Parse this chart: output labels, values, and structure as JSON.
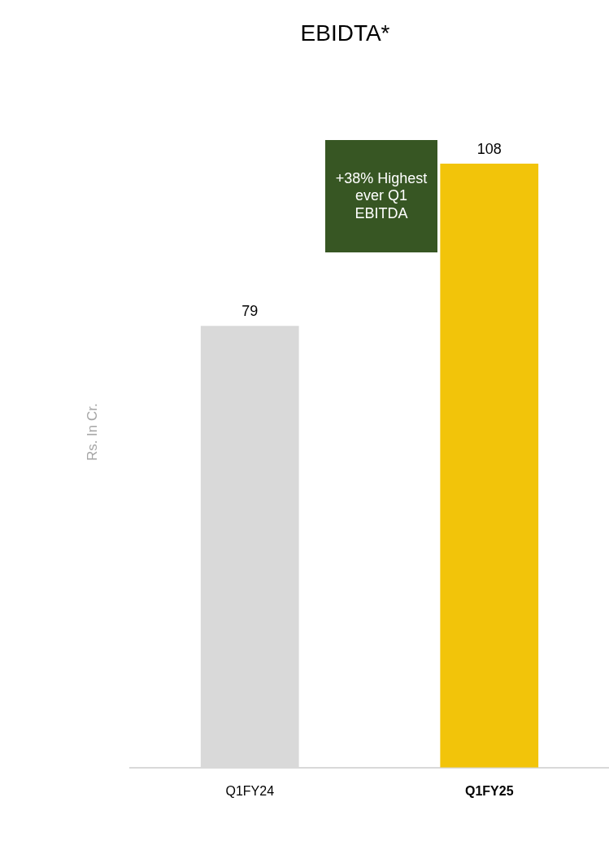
{
  "chart_data": {
    "type": "bar",
    "title": "EBIDTA*",
    "ylabel": "Rs. In Cr.",
    "categories": [
      "Q1FY24",
      "Q1FY25"
    ],
    "values": [
      79,
      108
    ],
    "colors": [
      "#d9d9d9",
      "#f2c40a"
    ],
    "data_labels": true,
    "grid": false,
    "legend": false,
    "tick_labels": "x",
    "annotations": [
      "+38% Highest ever Q1 EBITDA"
    ]
  }
}
